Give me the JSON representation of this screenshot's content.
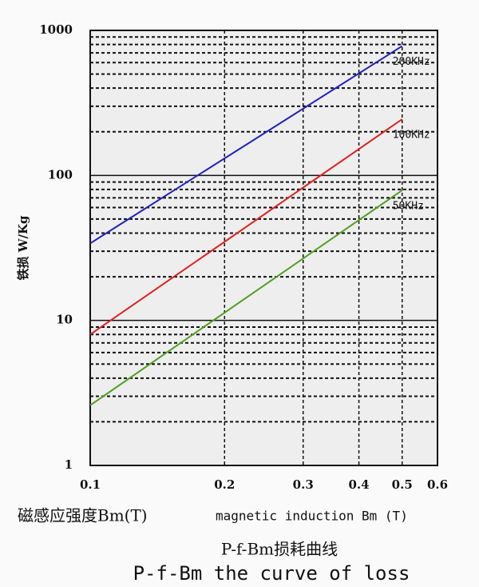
{
  "chart_data": {
    "type": "line",
    "title": "P-f-Bm损耗曲线",
    "subtitle": "P-f-Bm the curve of loss",
    "x_label": "磁感应强度Bm(T)",
    "x_label_en": "magnetic induction Bm (T)",
    "y_label": "铁损 W/Kg",
    "x": [
      0.1,
      0.5
    ],
    "series": [
      {
        "name": "200KHz",
        "color": "#2020c0",
        "values": [
          34,
          780
        ]
      },
      {
        "name": "100KHz",
        "color": "#e02020",
        "values": [
          8,
          244
        ]
      },
      {
        "name": "50KHz",
        "color": "#50a020",
        "values": [
          2.6,
          79
        ]
      }
    ],
    "xlim": [
      0.1,
      0.6
    ],
    "ylim": [
      1,
      1000
    ],
    "xticks": [
      0.1,
      0.2,
      0.3,
      0.4,
      0.5,
      0.6
    ],
    "yticks": [
      1,
      10,
      100,
      1000
    ],
    "yminorticks": [
      2,
      3,
      4,
      5,
      6,
      7,
      8,
      9,
      20,
      30,
      40,
      50,
      60,
      70,
      80,
      90,
      200,
      300,
      400,
      500,
      600,
      700,
      800,
      900
    ],
    "xscale": "log",
    "yscale": "log",
    "grid": true
  }
}
